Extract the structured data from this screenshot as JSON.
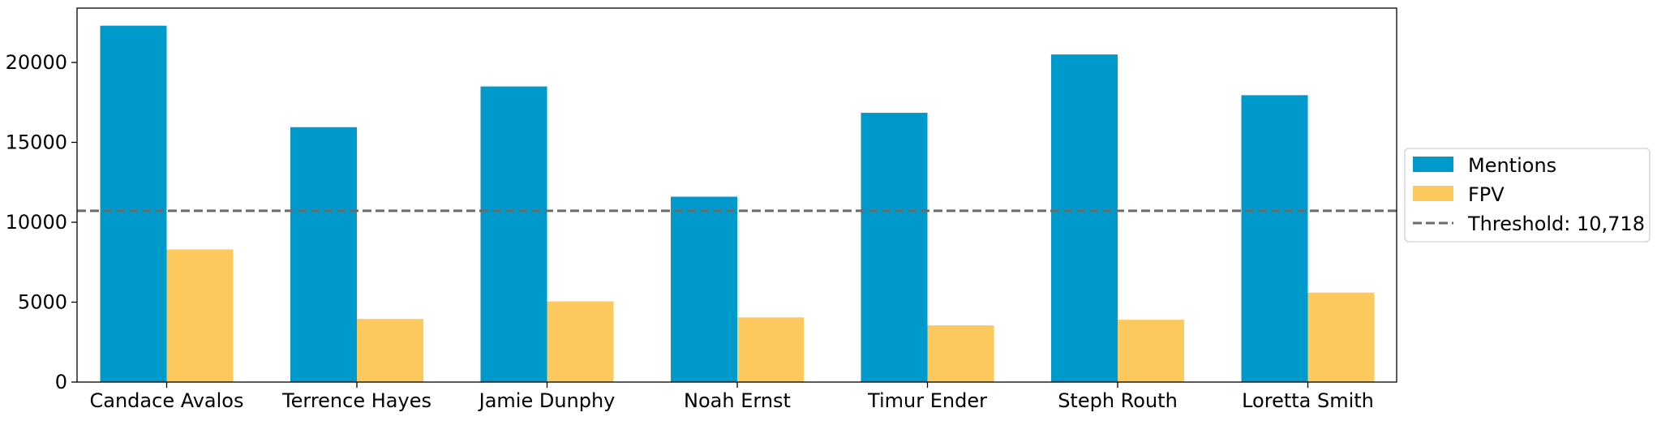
{
  "chart_data": {
    "type": "bar",
    "title": "",
    "xlabel": "",
    "ylabel": "",
    "categories": [
      "Candace Avalos",
      "Terrence Hayes",
      "Jamie Dunphy",
      "Noah Ernst",
      "Timur Ender",
      "Steph Routh",
      "Loretta Smith"
    ],
    "series": [
      {
        "name": "Mentions",
        "color": "#0099cc",
        "values": [
          22300,
          15950,
          18500,
          11600,
          16850,
          20500,
          17950
        ]
      },
      {
        "name": "FPV",
        "color": "#fdc85e",
        "values": [
          8300,
          3950,
          5050,
          4050,
          3550,
          3900,
          5600
        ]
      }
    ],
    "threshold": {
      "value": 10718,
      "label": "Threshold: 10,718",
      "color": "#6b6b6b",
      "style": "dashed"
    },
    "ylim": [
      0,
      23400
    ],
    "yticks": [
      0,
      5000,
      10000,
      15000,
      20000
    ],
    "grid": false,
    "legend": {
      "placement": "right-center outside plot"
    }
  }
}
